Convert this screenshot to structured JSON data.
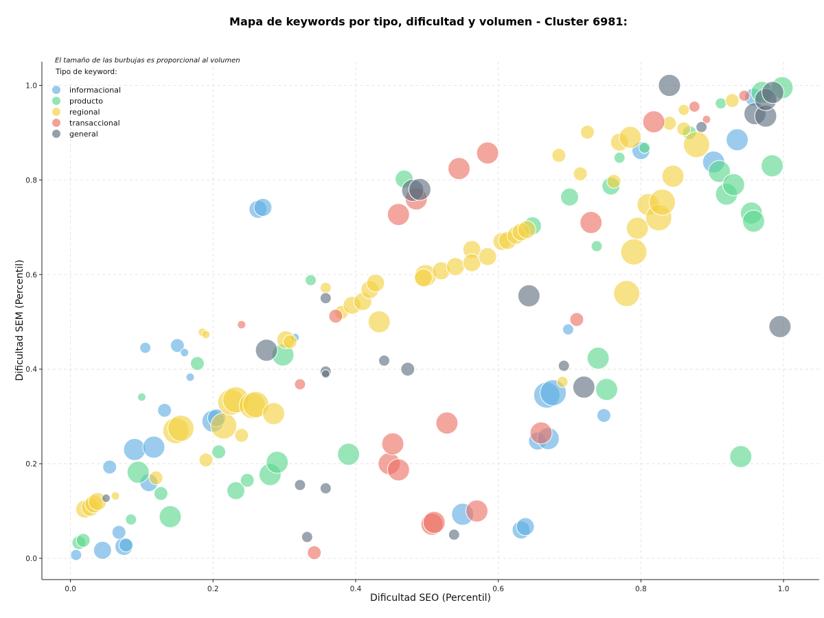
{
  "chart_data": {
    "type": "scatter",
    "title": "Mapa de keywords por tipo, dificultad y volumen - Cluster 6981:",
    "xlabel": "Dificultad SEO (Percentil)",
    "ylabel": "Dificultad SEM (Percentil)",
    "xlim": [
      -0.04,
      1.05
    ],
    "ylim": [
      -0.045,
      1.05
    ],
    "xticks": [
      "0.0",
      "0.2",
      "0.4",
      "0.6",
      "0.8",
      "1.0"
    ],
    "yticks": [
      "0.0",
      "0.2",
      "0.4",
      "0.6",
      "0.8",
      "1.0"
    ],
    "grid": true,
    "note": "El tamaño de las burbujas es proporcional al volumen",
    "legend_title": "Tipo de keyword:",
    "legend_position": "top-left",
    "series": [
      {
        "name": "informacional",
        "color": "#5DADE2",
        "points": [
          [
            0.008,
            0.007,
            1
          ],
          [
            0.045,
            0.017,
            3
          ],
          [
            0.075,
            0.025,
            3
          ],
          [
            0.078,
            0.028,
            2
          ],
          [
            0.068,
            0.055,
            2
          ],
          [
            0.055,
            0.193,
            2
          ],
          [
            0.09,
            0.23,
            4
          ],
          [
            0.117,
            0.235,
            4
          ],
          [
            0.11,
            0.16,
            3
          ],
          [
            0.132,
            0.313,
            2
          ],
          [
            0.105,
            0.445,
            1
          ],
          [
            0.15,
            0.45,
            2
          ],
          [
            0.16,
            0.435,
            0
          ],
          [
            0.168,
            0.383,
            0
          ],
          [
            0.2,
            0.29,
            4
          ],
          [
            0.205,
            0.297,
            3
          ],
          [
            0.263,
            0.738,
            3
          ],
          [
            0.27,
            0.742,
            3
          ],
          [
            0.315,
            0.467,
            0
          ],
          [
            0.55,
            0.093,
            4
          ],
          [
            0.632,
            0.06,
            3
          ],
          [
            0.638,
            0.067,
            3
          ],
          [
            0.655,
            0.248,
            3
          ],
          [
            0.67,
            0.253,
            4
          ],
          [
            0.668,
            0.345,
            5
          ],
          [
            0.677,
            0.35,
            5
          ],
          [
            0.698,
            0.484,
            1
          ],
          [
            0.748,
            0.302,
            2
          ],
          [
            0.8,
            0.862,
            3
          ],
          [
            0.902,
            0.838,
            4
          ],
          [
            0.935,
            0.885,
            4
          ],
          [
            0.958,
            0.975,
            3
          ]
        ]
      },
      {
        "name": "producto",
        "color": "#58D68D",
        "points": [
          [
            0.012,
            0.033,
            2
          ],
          [
            0.018,
            0.038,
            2
          ],
          [
            0.085,
            0.082,
            1
          ],
          [
            0.1,
            0.341,
            0
          ],
          [
            0.095,
            0.182,
            4
          ],
          [
            0.127,
            0.137,
            2
          ],
          [
            0.14,
            0.088,
            4
          ],
          [
            0.178,
            0.412,
            2
          ],
          [
            0.208,
            0.225,
            2
          ],
          [
            0.232,
            0.143,
            3
          ],
          [
            0.248,
            0.165,
            2
          ],
          [
            0.28,
            0.177,
            4
          ],
          [
            0.29,
            0.203,
            4
          ],
          [
            0.298,
            0.43,
            4
          ],
          [
            0.337,
            0.588,
            1
          ],
          [
            0.39,
            0.22,
            4
          ],
          [
            0.468,
            0.802,
            3
          ],
          [
            0.648,
            0.703,
            3
          ],
          [
            0.7,
            0.764,
            3
          ],
          [
            0.74,
            0.423,
            4
          ],
          [
            0.752,
            0.357,
            4
          ],
          [
            0.738,
            0.66,
            1
          ],
          [
            0.758,
            0.787,
            3
          ],
          [
            0.77,
            0.847,
            1
          ],
          [
            0.805,
            0.868,
            1
          ],
          [
            0.868,
            0.9,
            2
          ],
          [
            0.91,
            0.818,
            4
          ],
          [
            0.912,
            0.962,
            1
          ],
          [
            0.92,
            0.77,
            4
          ],
          [
            0.93,
            0.79,
            4
          ],
          [
            0.955,
            0.73,
            4
          ],
          [
            0.958,
            0.713,
            4
          ],
          [
            0.94,
            0.215,
            4
          ],
          [
            0.97,
            0.985,
            4
          ],
          [
            0.984,
            0.83,
            4
          ],
          [
            0.998,
            0.995,
            4
          ]
        ]
      },
      {
        "name": "regional",
        "color": "#F4D03F",
        "points": [
          [
            0.02,
            0.104,
            3
          ],
          [
            0.028,
            0.108,
            3
          ],
          [
            0.033,
            0.115,
            3
          ],
          [
            0.038,
            0.12,
            3
          ],
          [
            0.063,
            0.132,
            0
          ],
          [
            0.12,
            0.17,
            2
          ],
          [
            0.148,
            0.27,
            5
          ],
          [
            0.155,
            0.275,
            5
          ],
          [
            0.185,
            0.478,
            0
          ],
          [
            0.19,
            0.473,
            0
          ],
          [
            0.19,
            0.208,
            2
          ],
          [
            0.215,
            0.28,
            5
          ],
          [
            0.225,
            0.33,
            5
          ],
          [
            0.232,
            0.335,
            5
          ],
          [
            0.24,
            0.26,
            2
          ],
          [
            0.255,
            0.323,
            5
          ],
          [
            0.26,
            0.325,
            5
          ],
          [
            0.285,
            0.306,
            4
          ],
          [
            0.302,
            0.462,
            3
          ],
          [
            0.308,
            0.458,
            2
          ],
          [
            0.358,
            0.572,
            1
          ],
          [
            0.38,
            0.52,
            2
          ],
          [
            0.395,
            0.535,
            3
          ],
          [
            0.41,
            0.543,
            3
          ],
          [
            0.42,
            0.568,
            3
          ],
          [
            0.428,
            0.582,
            3
          ],
          [
            0.433,
            0.5,
            4
          ],
          [
            0.498,
            0.598,
            4
          ],
          [
            0.495,
            0.593,
            3
          ],
          [
            0.52,
            0.608,
            3
          ],
          [
            0.54,
            0.617,
            3
          ],
          [
            0.563,
            0.653,
            3
          ],
          [
            0.563,
            0.625,
            3
          ],
          [
            0.585,
            0.638,
            3
          ],
          [
            0.605,
            0.67,
            3
          ],
          [
            0.613,
            0.672,
            3
          ],
          [
            0.625,
            0.683,
            3
          ],
          [
            0.632,
            0.69,
            3
          ],
          [
            0.64,
            0.695,
            3
          ],
          [
            0.69,
            0.373,
            1
          ],
          [
            0.685,
            0.852,
            2
          ],
          [
            0.715,
            0.813,
            2
          ],
          [
            0.725,
            0.901,
            2
          ],
          [
            0.762,
            0.797,
            2
          ],
          [
            0.78,
            0.56,
            5
          ],
          [
            0.77,
            0.88,
            3
          ],
          [
            0.785,
            0.89,
            4
          ],
          [
            0.795,
            0.698,
            4
          ],
          [
            0.79,
            0.648,
            5
          ],
          [
            0.81,
            0.748,
            4
          ],
          [
            0.825,
            0.72,
            5
          ],
          [
            0.83,
            0.753,
            5
          ],
          [
            0.845,
            0.808,
            4
          ],
          [
            0.84,
            0.92,
            2
          ],
          [
            0.86,
            0.908,
            2
          ],
          [
            0.86,
            0.948,
            1
          ],
          [
            0.878,
            0.875,
            5
          ],
          [
            0.928,
            0.968,
            2
          ]
        ]
      },
      {
        "name": "transaccional",
        "color": "#EC7063",
        "points": [
          [
            0.24,
            0.494,
            0
          ],
          [
            0.322,
            0.368,
            1
          ],
          [
            0.342,
            0.012,
            2
          ],
          [
            0.372,
            0.512,
            2
          ],
          [
            0.447,
            0.2,
            4
          ],
          [
            0.452,
            0.242,
            4
          ],
          [
            0.46,
            0.187,
            4
          ],
          [
            0.46,
            0.727,
            4
          ],
          [
            0.485,
            0.76,
            4
          ],
          [
            0.507,
            0.072,
            4
          ],
          [
            0.51,
            0.076,
            4
          ],
          [
            0.528,
            0.286,
            4
          ],
          [
            0.545,
            0.824,
            4
          ],
          [
            0.57,
            0.1,
            4
          ],
          [
            0.585,
            0.857,
            4
          ],
          [
            0.66,
            0.265,
            4
          ],
          [
            0.71,
            0.505,
            2
          ],
          [
            0.73,
            0.71,
            4
          ],
          [
            0.818,
            0.923,
            4
          ],
          [
            0.875,
            0.955,
            1
          ],
          [
            0.892,
            0.928,
            0
          ],
          [
            0.945,
            0.978,
            1
          ]
        ]
      },
      {
        "name": "general",
        "color": "#5D6D7E",
        "points": [
          [
            0.05,
            0.127,
            0
          ],
          [
            0.275,
            0.44,
            4
          ],
          [
            0.322,
            0.155,
            1
          ],
          [
            0.332,
            0.045,
            1
          ],
          [
            0.358,
            0.55,
            1
          ],
          [
            0.358,
            0.395,
            1
          ],
          [
            0.358,
            0.39,
            0
          ],
          [
            0.358,
            0.148,
            1
          ],
          [
            0.44,
            0.418,
            1
          ],
          [
            0.473,
            0.4,
            2
          ],
          [
            0.48,
            0.778,
            4
          ],
          [
            0.49,
            0.78,
            4
          ],
          [
            0.538,
            0.05,
            1
          ],
          [
            0.643,
            0.555,
            4
          ],
          [
            0.692,
            0.407,
            1
          ],
          [
            0.72,
            0.362,
            4
          ],
          [
            0.84,
            1.0,
            4
          ],
          [
            0.885,
            0.912,
            1
          ],
          [
            0.96,
            0.94,
            4
          ],
          [
            0.975,
            0.935,
            4
          ],
          [
            0.975,
            0.97,
            4
          ],
          [
            0.985,
            0.985,
            4
          ],
          [
            0.995,
            0.49,
            4
          ]
        ]
      }
    ]
  }
}
